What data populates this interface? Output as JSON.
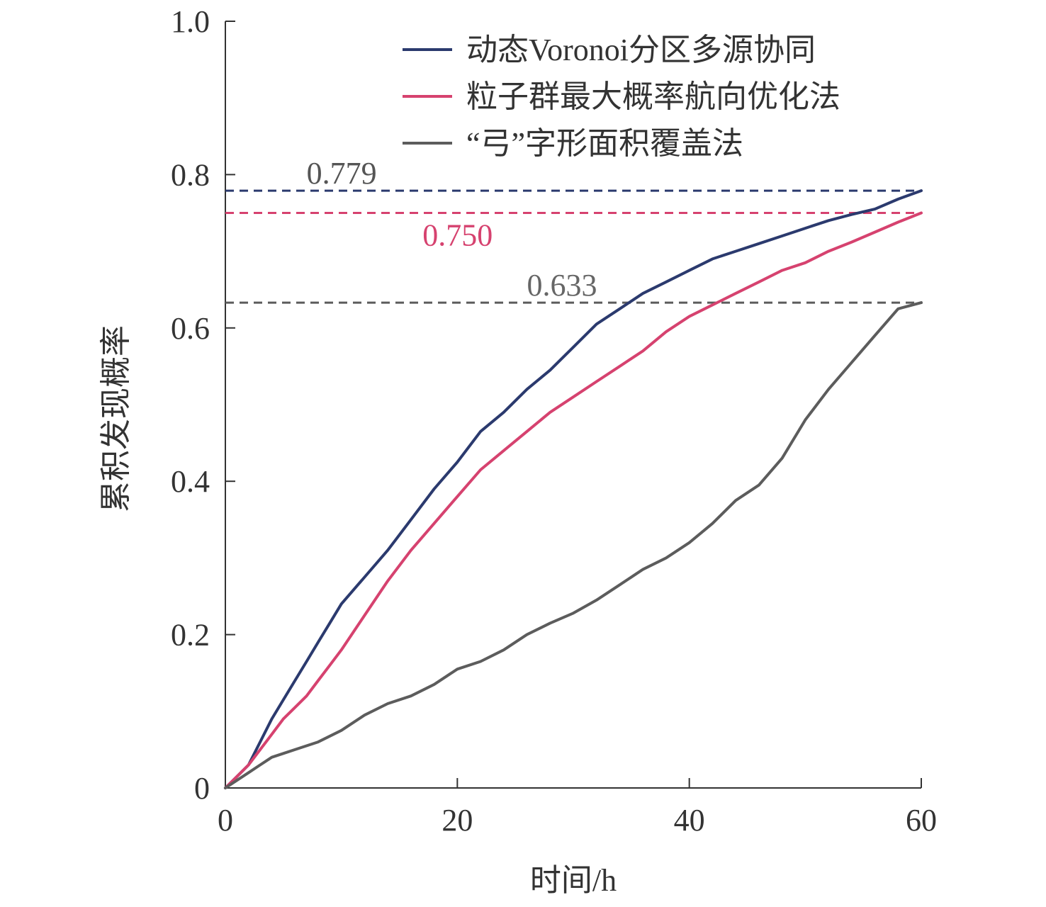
{
  "chart_data": {
    "type": "line",
    "title": "",
    "xlabel": "时间/h",
    "ylabel": "累积发现概率",
    "xlim": [
      0,
      60
    ],
    "ylim": [
      0,
      1.0
    ],
    "x_ticks": [
      0,
      20,
      40,
      60
    ],
    "x_tick_labels": [
      "0",
      "20",
      "40",
      "60"
    ],
    "y_ticks": [
      0,
      0.2,
      0.4,
      0.6,
      0.8,
      1.0
    ],
    "y_tick_labels": [
      "0",
      "0.2",
      "0.4",
      "0.6",
      "0.8",
      "1.0"
    ],
    "grid": false,
    "legend_position": "top-right",
    "series": [
      {
        "name": "动态Voronoi分区多源协同",
        "color": "#2b3a6e",
        "x": [
          0,
          1,
          2,
          3,
          4,
          5,
          6,
          7,
          8,
          9,
          10,
          12,
          14,
          16,
          18,
          20,
          22,
          24,
          26,
          28,
          30,
          32,
          34,
          36,
          38,
          40,
          42,
          44,
          46,
          48,
          50,
          52,
          54,
          56,
          58,
          60
        ],
        "y": [
          0,
          0.015,
          0.03,
          0.06,
          0.09,
          0.115,
          0.14,
          0.165,
          0.19,
          0.215,
          0.24,
          0.275,
          0.31,
          0.35,
          0.39,
          0.425,
          0.465,
          0.49,
          0.52,
          0.545,
          0.575,
          0.605,
          0.625,
          0.645,
          0.66,
          0.675,
          0.69,
          0.7,
          0.71,
          0.72,
          0.73,
          0.74,
          0.748,
          0.755,
          0.768,
          0.779
        ]
      },
      {
        "name": "粒子群最大概率航向优化法",
        "color": "#d6426f",
        "x": [
          0,
          1,
          2,
          3,
          4,
          5,
          6,
          7,
          8,
          9,
          10,
          12,
          14,
          16,
          18,
          20,
          22,
          24,
          26,
          28,
          30,
          32,
          34,
          36,
          38,
          40,
          42,
          44,
          46,
          48,
          50,
          52,
          54,
          56,
          58,
          60
        ],
        "y": [
          0,
          0.015,
          0.03,
          0.05,
          0.07,
          0.09,
          0.105,
          0.12,
          0.14,
          0.16,
          0.18,
          0.225,
          0.27,
          0.31,
          0.345,
          0.38,
          0.415,
          0.44,
          0.465,
          0.49,
          0.51,
          0.53,
          0.55,
          0.57,
          0.595,
          0.615,
          0.63,
          0.645,
          0.66,
          0.675,
          0.685,
          0.7,
          0.712,
          0.725,
          0.738,
          0.75
        ]
      },
      {
        "name": "“弓”字形面积覆盖法",
        "color": "#5c5c5c",
        "x": [
          0,
          1,
          2,
          3,
          4,
          5,
          6,
          8,
          10,
          12,
          14,
          16,
          18,
          20,
          22,
          24,
          26,
          28,
          30,
          32,
          34,
          36,
          38,
          40,
          42,
          44,
          46,
          48,
          50,
          52,
          54,
          56,
          58,
          60
        ],
        "y": [
          0,
          0.01,
          0.02,
          0.03,
          0.04,
          0.045,
          0.05,
          0.06,
          0.075,
          0.095,
          0.11,
          0.12,
          0.135,
          0.155,
          0.165,
          0.18,
          0.2,
          0.215,
          0.228,
          0.245,
          0.265,
          0.285,
          0.3,
          0.32,
          0.345,
          0.375,
          0.395,
          0.43,
          0.48,
          0.52,
          0.555,
          0.59,
          0.625,
          0.633
        ]
      }
    ],
    "reference_lines": [
      {
        "y": 0.779,
        "label": "0.779",
        "color": "#2b3a6e",
        "label_color": "#555555",
        "label_x": 7
      },
      {
        "y": 0.75,
        "label": "0.750",
        "color": "#d6426f",
        "label_color": "#d6426f",
        "label_x": 17
      },
      {
        "y": 0.633,
        "label": "0.633",
        "color": "#5c5c5c",
        "label_color": "#666666",
        "label_x": 26
      }
    ]
  }
}
